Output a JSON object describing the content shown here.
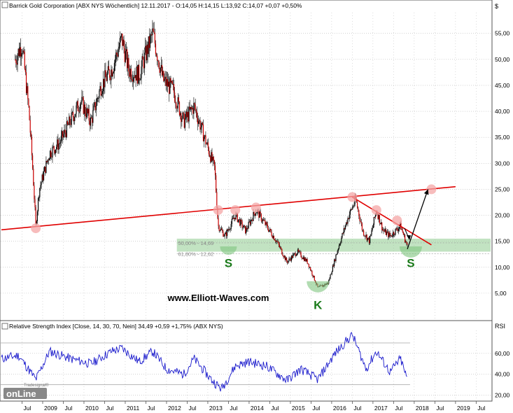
{
  "price_panel": {
    "header": "Barrick Gold Corporation [ABX NYS  Wöchentlich] 12.11.2017 - O:14,05 H:14,15 L:13,92 C:14,07 +0,07 +0,50%",
    "currency_label": "$",
    "fib_labels": [
      "50,00% - 14,69",
      "61,80% - 12,62"
    ],
    "pattern_labels": [
      "S",
      "K",
      "S"
    ],
    "watermark": "www.Elliott-Waves.com"
  },
  "rsi_panel": {
    "header": "Relative Strength Index [Close, 14, 30, 70, Nein] 34,49 +0,59 +1,75% (ABX NYS)",
    "axis_label": "RSI"
  },
  "logo": {
    "brand_small": "Tradesignal®",
    "brand_large": "onLine"
  },
  "colors": {
    "background": "#ffffff",
    "candle_up": "#000000",
    "candle_down": "#cc0000",
    "trendline": "#e00000",
    "support_zone": "#8fcc8f",
    "pattern_label": "#1a7a1a",
    "rsi_line": "#1a1acc",
    "rsi_bounds": "#b0b0b0",
    "grid": "#b8b8b8"
  },
  "chart_data": [
    {
      "type": "candlestick",
      "title": "Barrick Gold Corporation [ABX NYS  Wöchentlich]",
      "x_axis_labels": [
        "Jul",
        "2009",
        "Jul",
        "2010",
        "Jul",
        "2011",
        "Jul",
        "2012",
        "Jul",
        "2013",
        "Jul",
        "2014",
        "Jul",
        "2015",
        "Jul",
        "2016",
        "Jul",
        "2017",
        "Jul",
        "2018",
        "Jul",
        "2019",
        "Jul"
      ],
      "y_ticks": [
        "5,00",
        "10,00",
        "15,00",
        "20,00",
        "25,00",
        "30,00",
        "35,00",
        "40,00",
        "45,00",
        "50,00",
        "55,00"
      ],
      "y_values": [
        5,
        10,
        15,
        20,
        25,
        30,
        35,
        40,
        45,
        50,
        55
      ],
      "ylim": [
        0,
        59
      ],
      "grid": true,
      "series": [
        {
          "name": "ABX",
          "approx_path": [
            [
              "2008-05",
              50
            ],
            [
              "2008-07",
              53
            ],
            [
              "2008-09",
              40
            ],
            [
              "2008-10",
              30
            ],
            [
              "2008-11",
              18
            ],
            [
              "2008-12",
              25
            ],
            [
              "2009-03",
              32
            ],
            [
              "2009-06",
              34
            ],
            [
              "2009-09",
              38
            ],
            [
              "2009-12",
              42
            ],
            [
              "2010-03",
              38
            ],
            [
              "2010-06",
              45
            ],
            [
              "2010-09",
              48
            ],
            [
              "2010-12",
              54
            ],
            [
              "2011-02",
              48
            ],
            [
              "2011-05",
              47
            ],
            [
              "2011-09",
              55
            ],
            [
              "2011-12",
              46
            ],
            [
              "2012-03",
              44
            ],
            [
              "2012-06",
              38
            ],
            [
              "2012-09",
              41
            ],
            [
              "2012-12",
              35
            ],
            [
              "2013-03",
              29
            ],
            [
              "2013-04",
              18
            ],
            [
              "2013-06",
              16
            ],
            [
              "2013-09",
              20
            ],
            [
              "2013-12",
              17
            ],
            [
              "2014-03",
              21
            ],
            [
              "2014-06",
              18
            ],
            [
              "2014-09",
              15
            ],
            [
              "2014-12",
              11
            ],
            [
              "2015-03",
              13
            ],
            [
              "2015-06",
              11
            ],
            [
              "2015-09",
              6
            ],
            [
              "2015-12",
              7
            ],
            [
              "2016-03",
              14
            ],
            [
              "2016-06",
              20
            ],
            [
              "2016-08",
              23
            ],
            [
              "2016-10",
              17
            ],
            [
              "2016-12",
              15
            ],
            [
              "2017-02",
              21
            ],
            [
              "2017-04",
              17
            ],
            [
              "2017-06",
              16
            ],
            [
              "2017-09",
              18
            ],
            [
              "2017-11",
              14
            ]
          ]
        }
      ],
      "support_zone": {
        "low": 13.0,
        "high": 15.5
      },
      "fibonacci_levels": [
        {
          "label": "50,00%",
          "value": 14.69
        },
        {
          "label": "61,80%",
          "value": 12.62
        }
      ],
      "trendlines": [
        {
          "name": "neckline",
          "from": [
            "2008-01",
            17.2
          ],
          "to": [
            "2019-01",
            25.5
          ]
        },
        {
          "name": "downtrend",
          "from": [
            "2016-07",
            23.5
          ],
          "to": [
            "2018-06",
            14.3
          ]
        }
      ],
      "projection_arrow": {
        "from": [
          "2017-11",
          13.5
        ],
        "to": [
          "2018-05",
          25
        ]
      },
      "touch_markers": [
        [
          "2008-11",
          17.5
        ],
        [
          "2013-04",
          21
        ],
        [
          "2013-09",
          21
        ],
        [
          "2014-03",
          21.5
        ],
        [
          "2016-07",
          23.5
        ],
        [
          "2017-02",
          21
        ],
        [
          "2017-08",
          19
        ],
        [
          "2018-06",
          25
        ]
      ],
      "pattern_labels": [
        {
          "text": "S",
          "at": [
            "2013-07",
            13
          ]
        },
        {
          "text": "K",
          "at": [
            "2015-09",
            6
          ]
        },
        {
          "text": "S",
          "at": [
            "2017-12",
            13
          ]
        }
      ]
    },
    {
      "type": "line",
      "title": "Relative Strength Index [Close, 14, 30, 70, Nein]",
      "y_ticks": [
        "20,00",
        "40,00",
        "60,00"
      ],
      "y_values": [
        20,
        40,
        60
      ],
      "ylim": [
        15,
        82
      ],
      "bounds": [
        30,
        70
      ],
      "series": [
        {
          "name": "Relative Strength Index",
          "approx_path": [
            [
              "2008-01",
              55
            ],
            [
              "2008-06",
              58
            ],
            [
              "2008-11",
              35
            ],
            [
              "2009-03",
              62
            ],
            [
              "2009-09",
              55
            ],
            [
              "2010-03",
              50
            ],
            [
              "2010-09",
              62
            ],
            [
              "2010-12",
              65
            ],
            [
              "2011-05",
              52
            ],
            [
              "2011-09",
              62
            ],
            [
              "2012-01",
              45
            ],
            [
              "2012-06",
              40
            ],
            [
              "2012-09",
              55
            ],
            [
              "2013-02",
              35
            ],
            [
              "2013-05",
              26
            ],
            [
              "2013-09",
              48
            ],
            [
              "2014-01",
              52
            ],
            [
              "2014-06",
              48
            ],
            [
              "2014-12",
              34
            ],
            [
              "2015-04",
              45
            ],
            [
              "2015-09",
              35
            ],
            [
              "2016-02",
              60
            ],
            [
              "2016-07",
              78
            ],
            [
              "2016-11",
              45
            ],
            [
              "2017-02",
              62
            ],
            [
              "2017-06",
              42
            ],
            [
              "2017-09",
              55
            ],
            [
              "2017-11",
              34.49
            ]
          ]
        }
      ]
    }
  ]
}
